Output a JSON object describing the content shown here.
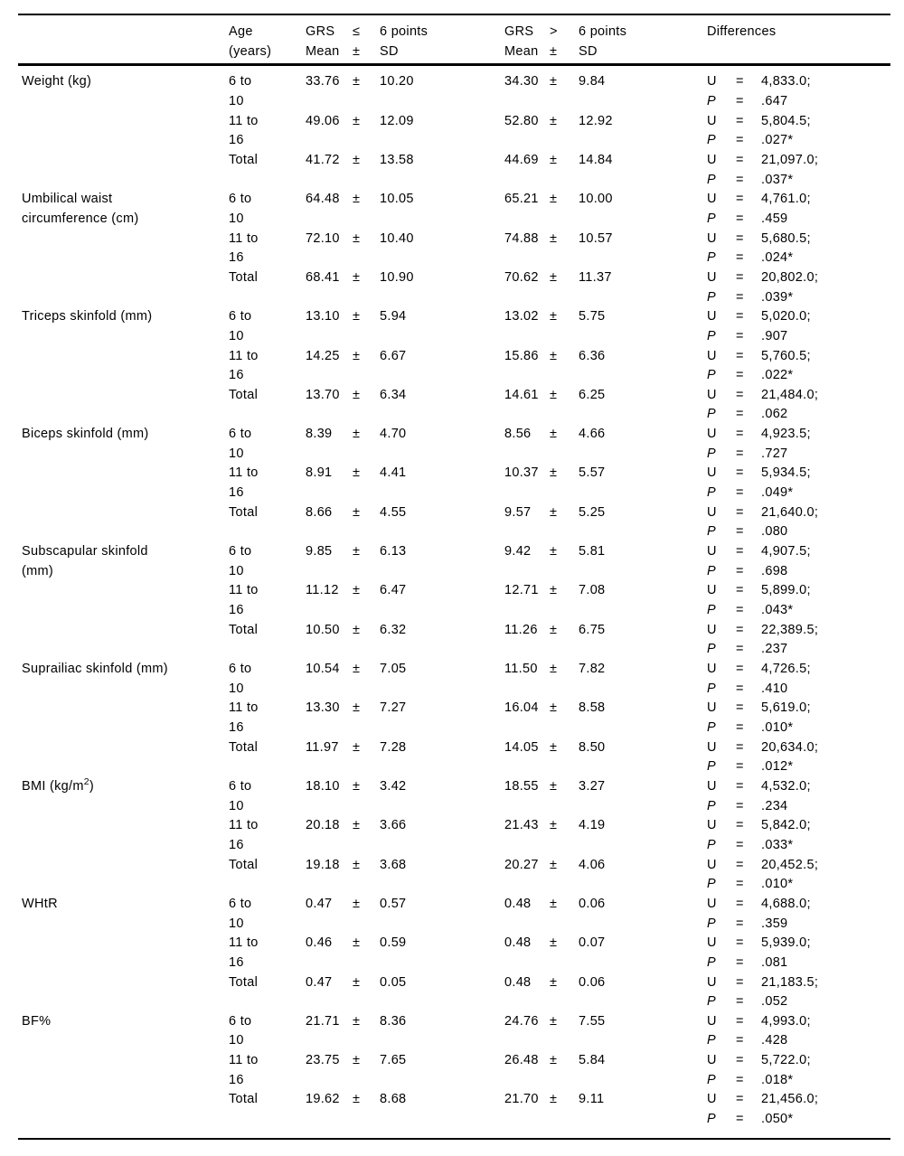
{
  "table": {
    "header": {
      "age_line1": "Age",
      "age_line2": "(years)",
      "group1": {
        "name": "GRS",
        "op": "≤",
        "points": "6 points",
        "mean": "Mean",
        "pm": "±",
        "sd": "SD"
      },
      "group2": {
        "name": "GRS",
        "op": ">",
        "points": "6 points",
        "mean": "Mean",
        "pm": "±",
        "sd": "SD"
      },
      "differences": "Differences"
    },
    "stat": {
      "u_label": "U",
      "p_label": "P",
      "eq": "=",
      "pm": "±"
    },
    "rows": [
      {
        "label_lines": [
          "Weight (kg)",
          ""
        ],
        "groups": [
          {
            "age": [
              "6 to",
              "10"
            ],
            "m1": "33.76",
            "s1": "10.20",
            "m2": "34.30",
            "s2": "9.84",
            "u": "4,833.0;",
            "p": ".647"
          },
          {
            "age": [
              "11 to",
              "16"
            ],
            "m1": "49.06",
            "s1": "12.09",
            "m2": "52.80",
            "s2": "12.92",
            "u": "5,804.5;",
            "p": ".027*"
          },
          {
            "age": [
              "Total",
              ""
            ],
            "m1": "41.72",
            "s1": "13.58",
            "m2": "44.69",
            "s2": "14.84",
            "u": "21,097.0;",
            "p": ".037*"
          }
        ]
      },
      {
        "label_lines": [
          "Umbilical waist",
          "circumference (cm)"
        ],
        "groups": [
          {
            "age": [
              "6 to",
              "10"
            ],
            "m1": "64.48",
            "s1": "10.05",
            "m2": "65.21",
            "s2": "10.00",
            "u": "4,761.0;",
            "p": ".459"
          },
          {
            "age": [
              "11 to",
              "16"
            ],
            "m1": "72.10",
            "s1": "10.40",
            "m2": "74.88",
            "s2": "10.57",
            "u": "5,680.5;",
            "p": ".024*"
          },
          {
            "age": [
              "Total",
              ""
            ],
            "m1": "68.41",
            "s1": "10.90",
            "m2": "70.62",
            "s2": "11.37",
            "u": "20,802.0;",
            "p": ".039*"
          }
        ]
      },
      {
        "label_lines": [
          "Triceps skinfold (mm)",
          ""
        ],
        "groups": [
          {
            "age": [
              "6 to",
              "10"
            ],
            "m1": "13.10",
            "s1": "5.94",
            "m2": "13.02",
            "s2": "5.75",
            "u": "5,020.0;",
            "p": ".907"
          },
          {
            "age": [
              "11 to",
              "16"
            ],
            "m1": "14.25",
            "s1": "6.67",
            "m2": "15.86",
            "s2": "6.36",
            "u": "5,760.5;",
            "p": ".022*"
          },
          {
            "age": [
              "Total",
              ""
            ],
            "m1": "13.70",
            "s1": "6.34",
            "m2": "14.61",
            "s2": "6.25",
            "u": "21,484.0;",
            "p": ".062"
          }
        ]
      },
      {
        "label_lines": [
          "Biceps skinfold (mm)",
          ""
        ],
        "groups": [
          {
            "age": [
              "6 to",
              "10"
            ],
            "m1": "8.39",
            "s1": "4.70",
            "m2": "8.56",
            "s2": "4.66",
            "u": "4,923.5;",
            "p": ".727"
          },
          {
            "age": [
              "11 to",
              "16"
            ],
            "m1": "8.91",
            "s1": "4.41",
            "m2": "10.37",
            "s2": "5.57",
            "u": "5,934.5;",
            "p": ".049*"
          },
          {
            "age": [
              "Total",
              ""
            ],
            "m1": "8.66",
            "s1": "4.55",
            "m2": "9.57",
            "s2": "5.25",
            "u": "21,640.0;",
            "p": ".080"
          }
        ]
      },
      {
        "label_lines": [
          "Subscapular skinfold",
          "(mm)"
        ],
        "groups": [
          {
            "age": [
              "6 to",
              "10"
            ],
            "m1": "9.85",
            "s1": "6.13",
            "m2": "9.42",
            "s2": "5.81",
            "u": "4,907.5;",
            "p": ".698"
          },
          {
            "age": [
              "11 to",
              "16"
            ],
            "m1": "11.12",
            "s1": "6.47",
            "m2": "12.71",
            "s2": "7.08",
            "u": "5,899.0;",
            "p": ".043*"
          },
          {
            "age": [
              "Total",
              ""
            ],
            "m1": "10.50",
            "s1": "6.32",
            "m2": "11.26",
            "s2": "6.75",
            "u": "22,389.5;",
            "p": ".237"
          }
        ]
      },
      {
        "label_lines": [
          "Suprailiac skinfold (mm)",
          ""
        ],
        "groups": [
          {
            "age": [
              "6 to",
              "10"
            ],
            "m1": "10.54",
            "s1": "7.05",
            "m2": "11.50",
            "s2": "7.82",
            "u": "4,726.5;",
            "p": ".410"
          },
          {
            "age": [
              "11 to",
              "16"
            ],
            "m1": "13.30",
            "s1": "7.27",
            "m2": "16.04",
            "s2": "8.58",
            "u": "5,619.0;",
            "p": ".010*"
          },
          {
            "age": [
              "Total",
              ""
            ],
            "m1": "11.97",
            "s1": "7.28",
            "m2": "14.05",
            "s2": "8.50",
            "u": "20,634.0;",
            "p": ".012*"
          }
        ]
      },
      {
        "label_lines": [
          {
            "pre": "BMI (kg/m",
            "sup": "2",
            "post": ")"
          },
          ""
        ],
        "groups": [
          {
            "age": [
              "6 to",
              "10"
            ],
            "m1": "18.10",
            "s1": "3.42",
            "m2": "18.55",
            "s2": "3.27",
            "u": "4,532.0;",
            "p": ".234"
          },
          {
            "age": [
              "11 to",
              "16"
            ],
            "m1": "20.18",
            "s1": "3.66",
            "m2": "21.43",
            "s2": "4.19",
            "u": "5,842.0;",
            "p": ".033*"
          },
          {
            "age": [
              "Total",
              ""
            ],
            "m1": "19.18",
            "s1": "3.68",
            "m2": "20.27",
            "s2": "4.06",
            "u": "20,452.5;",
            "p": ".010*"
          }
        ]
      },
      {
        "label_lines": [
          "WHtR",
          ""
        ],
        "groups": [
          {
            "age": [
              "6 to",
              "10"
            ],
            "m1": "0.47",
            "s1": "0.57",
            "m2": "0.48",
            "s2": "0.06",
            "u": "4,688.0;",
            "p": ".359"
          },
          {
            "age": [
              "11 to",
              "16"
            ],
            "m1": "0.46",
            "s1": "0.59",
            "m2": "0.48",
            "s2": "0.07",
            "u": "5,939.0;",
            "p": ".081"
          },
          {
            "age": [
              "Total",
              ""
            ],
            "m1": "0.47",
            "s1": "0.05",
            "m2": "0.48",
            "s2": "0.06",
            "u": "21,183.5;",
            "p": ".052"
          }
        ]
      },
      {
        "label_lines": [
          "BF%",
          ""
        ],
        "groups": [
          {
            "age": [
              "6 to",
              "10"
            ],
            "m1": "21.71",
            "s1": "8.36",
            "m2": "24.76",
            "s2": "7.55",
            "u": "4,993.0;",
            "p": ".428"
          },
          {
            "age": [
              "11 to",
              "16"
            ],
            "m1": "23.75",
            "s1": "7.65",
            "m2": "26.48",
            "s2": "5.84",
            "u": "5,722.0;",
            "p": ".018*"
          },
          {
            "age": [
              "Total",
              ""
            ],
            "m1": "19.62",
            "s1": "8.68",
            "m2": "21.70",
            "s2": "9.11",
            "u": "21,456.0;",
            "p": ".050*"
          }
        ]
      }
    ]
  }
}
